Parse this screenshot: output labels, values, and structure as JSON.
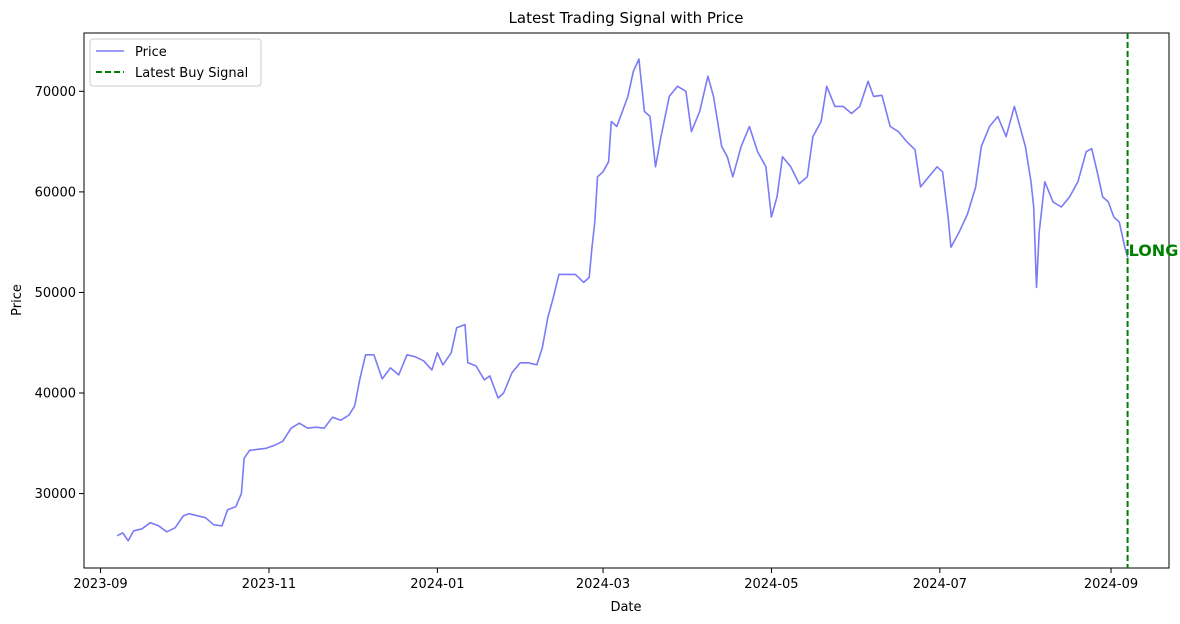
{
  "chart_data": {
    "type": "line",
    "title": "Latest Trading Signal with Price",
    "xlabel": "Date",
    "ylabel": "Price",
    "xlim": [
      "2023-08-26",
      "2024-09-22"
    ],
    "ylim": [
      22600,
      75800
    ],
    "x_ticks": [
      "2023-09",
      "2023-11",
      "2024-01",
      "2024-03",
      "2024-05",
      "2024-07",
      "2024-09"
    ],
    "y_ticks": [
      30000,
      40000,
      50000,
      60000,
      70000
    ],
    "grid": false,
    "legend": {
      "placement": "top-left",
      "entries": [
        "Price",
        "Latest Buy Signal"
      ]
    },
    "series": [
      {
        "name": "Price",
        "color": "#7b7bf5",
        "points": [
          [
            "2023-09-07",
            25800
          ],
          [
            "2023-09-09",
            26100
          ],
          [
            "2023-09-11",
            25300
          ],
          [
            "2023-09-13",
            26300
          ],
          [
            "2023-09-16",
            26500
          ],
          [
            "2023-09-19",
            27100
          ],
          [
            "2023-09-22",
            26800
          ],
          [
            "2023-09-25",
            26200
          ],
          [
            "2023-09-28",
            26600
          ],
          [
            "2023-10-01",
            27800
          ],
          [
            "2023-10-03",
            28000
          ],
          [
            "2023-10-06",
            27800
          ],
          [
            "2023-10-09",
            27600
          ],
          [
            "2023-10-12",
            26900
          ],
          [
            "2023-10-15",
            26800
          ],
          [
            "2023-10-17",
            28400
          ],
          [
            "2023-10-20",
            28700
          ],
          [
            "2023-10-22",
            30000
          ],
          [
            "2023-10-23",
            33500
          ],
          [
            "2023-10-25",
            34300
          ],
          [
            "2023-10-28",
            34400
          ],
          [
            "2023-10-31",
            34500
          ],
          [
            "2023-11-03",
            34800
          ],
          [
            "2023-11-06",
            35200
          ],
          [
            "2023-11-09",
            36500
          ],
          [
            "2023-11-12",
            37000
          ],
          [
            "2023-11-15",
            36500
          ],
          [
            "2023-11-18",
            36600
          ],
          [
            "2023-11-21",
            36500
          ],
          [
            "2023-11-24",
            37600
          ],
          [
            "2023-11-27",
            37300
          ],
          [
            "2023-11-30",
            37800
          ],
          [
            "2023-12-02",
            38700
          ],
          [
            "2023-12-04",
            41500
          ],
          [
            "2023-12-06",
            43800
          ],
          [
            "2023-12-09",
            43800
          ],
          [
            "2023-12-12",
            41400
          ],
          [
            "2023-12-15",
            42500
          ],
          [
            "2023-12-18",
            41800
          ],
          [
            "2023-12-21",
            43800
          ],
          [
            "2023-12-24",
            43600
          ],
          [
            "2023-12-27",
            43200
          ],
          [
            "2023-12-30",
            42300
          ],
          [
            "2024-01-01",
            44000
          ],
          [
            "2024-01-03",
            42800
          ],
          [
            "2024-01-06",
            44000
          ],
          [
            "2024-01-08",
            46500
          ],
          [
            "2024-01-11",
            46800
          ],
          [
            "2024-01-12",
            43000
          ],
          [
            "2024-01-15",
            42700
          ],
          [
            "2024-01-18",
            41300
          ],
          [
            "2024-01-20",
            41700
          ],
          [
            "2024-01-23",
            39500
          ],
          [
            "2024-01-25",
            40000
          ],
          [
            "2024-01-28",
            42000
          ],
          [
            "2024-01-31",
            43000
          ],
          [
            "2024-02-03",
            43000
          ],
          [
            "2024-02-06",
            42800
          ],
          [
            "2024-02-08",
            44500
          ],
          [
            "2024-02-10",
            47500
          ],
          [
            "2024-02-12",
            49500
          ],
          [
            "2024-02-14",
            51800
          ],
          [
            "2024-02-17",
            51800
          ],
          [
            "2024-02-20",
            51800
          ],
          [
            "2024-02-23",
            51000
          ],
          [
            "2024-02-25",
            51500
          ],
          [
            "2024-02-26",
            54500
          ],
          [
            "2024-02-27",
            57000
          ],
          [
            "2024-02-28",
            61500
          ],
          [
            "2024-03-01",
            62000
          ],
          [
            "2024-03-03",
            63000
          ],
          [
            "2024-03-04",
            67000
          ],
          [
            "2024-03-06",
            66500
          ],
          [
            "2024-03-08",
            68000
          ],
          [
            "2024-03-10",
            69500
          ],
          [
            "2024-03-12",
            72000
          ],
          [
            "2024-03-14",
            73200
          ],
          [
            "2024-03-16",
            68000
          ],
          [
            "2024-03-18",
            67500
          ],
          [
            "2024-03-20",
            62500
          ],
          [
            "2024-03-22",
            65500
          ],
          [
            "2024-03-25",
            69500
          ],
          [
            "2024-03-28",
            70500
          ],
          [
            "2024-03-31",
            70000
          ],
          [
            "2024-04-02",
            66000
          ],
          [
            "2024-04-05",
            68000
          ],
          [
            "2024-04-08",
            71500
          ],
          [
            "2024-04-10",
            69500
          ],
          [
            "2024-04-13",
            64500
          ],
          [
            "2024-04-15",
            63500
          ],
          [
            "2024-04-17",
            61500
          ],
          [
            "2024-04-20",
            64500
          ],
          [
            "2024-04-23",
            66500
          ],
          [
            "2024-04-26",
            64000
          ],
          [
            "2024-04-29",
            62500
          ],
          [
            "2024-05-01",
            57500
          ],
          [
            "2024-05-03",
            59500
          ],
          [
            "2024-05-05",
            63500
          ],
          [
            "2024-05-08",
            62500
          ],
          [
            "2024-05-11",
            60800
          ],
          [
            "2024-05-14",
            61500
          ],
          [
            "2024-05-16",
            65500
          ],
          [
            "2024-05-19",
            67000
          ],
          [
            "2024-05-21",
            70500
          ],
          [
            "2024-05-24",
            68500
          ],
          [
            "2024-05-27",
            68500
          ],
          [
            "2024-05-30",
            67800
          ],
          [
            "2024-06-02",
            68500
          ],
          [
            "2024-06-05",
            71000
          ],
          [
            "2024-06-07",
            69500
          ],
          [
            "2024-06-10",
            69600
          ],
          [
            "2024-06-13",
            66500
          ],
          [
            "2024-06-16",
            66000
          ],
          [
            "2024-06-19",
            65000
          ],
          [
            "2024-06-22",
            64200
          ],
          [
            "2024-06-24",
            60500
          ],
          [
            "2024-06-27",
            61500
          ],
          [
            "2024-06-30",
            62500
          ],
          [
            "2024-07-02",
            62000
          ],
          [
            "2024-07-04",
            57500
          ],
          [
            "2024-07-05",
            54500
          ],
          [
            "2024-07-08",
            56000
          ],
          [
            "2024-07-11",
            57800
          ],
          [
            "2024-07-14",
            60500
          ],
          [
            "2024-07-16",
            64500
          ],
          [
            "2024-07-19",
            66500
          ],
          [
            "2024-07-22",
            67500
          ],
          [
            "2024-07-25",
            65500
          ],
          [
            "2024-07-28",
            68500
          ],
          [
            "2024-07-30",
            66500
          ],
          [
            "2024-08-01",
            64500
          ],
          [
            "2024-08-03",
            61000
          ],
          [
            "2024-08-04",
            58500
          ],
          [
            "2024-08-05",
            50500
          ],
          [
            "2024-08-06",
            56000
          ],
          [
            "2024-08-08",
            61000
          ],
          [
            "2024-08-11",
            59000
          ],
          [
            "2024-08-14",
            58500
          ],
          [
            "2024-08-17",
            59500
          ],
          [
            "2024-08-20",
            61000
          ],
          [
            "2024-08-23",
            64000
          ],
          [
            "2024-08-25",
            64300
          ],
          [
            "2024-08-27",
            62000
          ],
          [
            "2024-08-29",
            59500
          ],
          [
            "2024-08-31",
            59000
          ],
          [
            "2024-09-02",
            57500
          ],
          [
            "2024-09-04",
            57000
          ],
          [
            "2024-09-06",
            54500
          ],
          [
            "2024-09-07",
            53500
          ]
        ]
      }
    ],
    "signal": {
      "name": "Latest Buy Signal",
      "date": "2024-09-07",
      "color": "#008000",
      "style": "dashed",
      "annotation": "LONG",
      "annotation_y": 54200
    }
  }
}
